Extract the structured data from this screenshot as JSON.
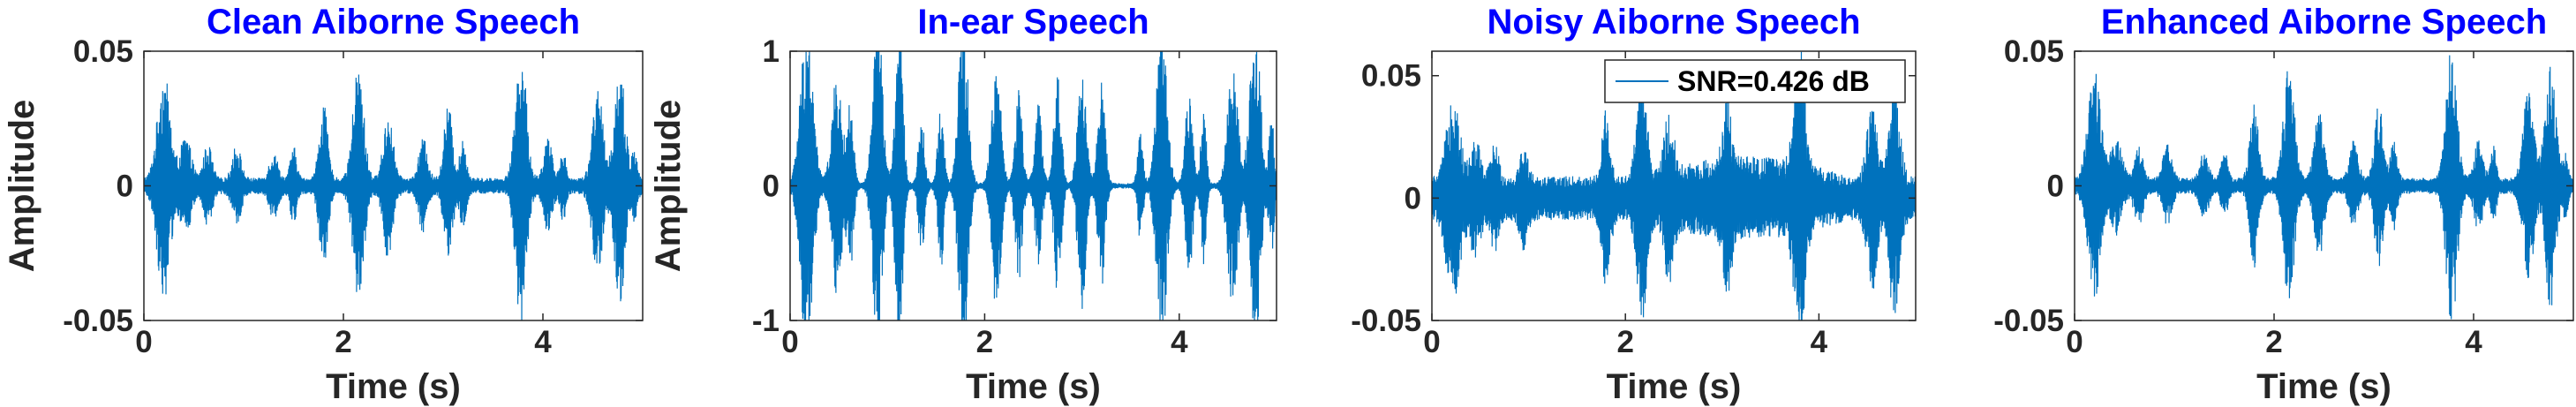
{
  "figure": {
    "background": "#ffffff",
    "signal_color": "#0072bd",
    "title_color": "#0000ff"
  },
  "chart_data": [
    {
      "type": "line",
      "title": "Clean Aiborne Speech",
      "xlabel": "Time (s)",
      "ylabel": "Amplitude",
      "xlim": [
        0,
        5
      ],
      "ylim": [
        -0.05,
        0.05
      ],
      "xticks": [
        0,
        2,
        4
      ],
      "xtick_labels": [
        "0",
        "2",
        "4"
      ],
      "yticks": [
        -0.05,
        0,
        0.05
      ],
      "ytick_labels": [
        "-0.05",
        "0",
        "0.05"
      ],
      "noise_floor": 0.003,
      "bursts": [
        {
          "t": 0.2,
          "amp": 0.04,
          "dur": 0.12
        },
        {
          "t": 0.42,
          "amp": 0.016,
          "dur": 0.1
        },
        {
          "t": 0.64,
          "amp": 0.013,
          "dur": 0.08
        },
        {
          "t": 0.93,
          "amp": 0.013,
          "dur": 0.08
        },
        {
          "t": 1.3,
          "amp": 0.01,
          "dur": 0.08
        },
        {
          "t": 1.5,
          "amp": 0.012,
          "dur": 0.06
        },
        {
          "t": 1.8,
          "amp": 0.028,
          "dur": 0.08
        },
        {
          "t": 2.15,
          "amp": 0.043,
          "dur": 0.1
        },
        {
          "t": 2.45,
          "amp": 0.025,
          "dur": 0.09
        },
        {
          "t": 2.8,
          "amp": 0.015,
          "dur": 0.08
        },
        {
          "t": 3.05,
          "amp": 0.028,
          "dur": 0.08
        },
        {
          "t": 3.2,
          "amp": 0.015,
          "dur": 0.06
        },
        {
          "t": 3.78,
          "amp": 0.05,
          "dur": 0.1
        },
        {
          "t": 4.05,
          "amp": 0.015,
          "dur": 0.08
        },
        {
          "t": 4.2,
          "amp": 0.012,
          "dur": 0.05
        },
        {
          "t": 4.55,
          "amp": 0.033,
          "dur": 0.1
        },
        {
          "t": 4.77,
          "amp": 0.043,
          "dur": 0.1
        },
        {
          "t": 4.92,
          "amp": 0.01,
          "dur": 0.05
        }
      ]
    },
    {
      "type": "line",
      "title": "In-ear Speech",
      "xlabel": "Time (s)",
      "ylabel": "Amplitude",
      "xlim": [
        0,
        5
      ],
      "ylim": [
        -1,
        1
      ],
      "xticks": [
        0,
        2,
        4
      ],
      "xtick_labels": [
        "0",
        "2",
        "4"
      ],
      "yticks": [
        -1,
        0,
        1
      ],
      "ytick_labels": [
        "-1",
        "0",
        "1"
      ],
      "noise_floor": 0.02,
      "bursts": [
        {
          "t": 0.17,
          "amp": 1.2,
          "dur": 0.12
        },
        {
          "t": 0.48,
          "amp": 0.8,
          "dur": 0.1
        },
        {
          "t": 0.62,
          "amp": 0.6,
          "dur": 0.06
        },
        {
          "t": 0.9,
          "amp": 1.3,
          "dur": 0.09
        },
        {
          "t": 1.12,
          "amp": 1.3,
          "dur": 0.07
        },
        {
          "t": 1.35,
          "amp": 0.5,
          "dur": 0.06
        },
        {
          "t": 1.55,
          "amp": 0.6,
          "dur": 0.06
        },
        {
          "t": 1.78,
          "amp": 1.3,
          "dur": 0.09
        },
        {
          "t": 2.12,
          "amp": 0.9,
          "dur": 0.09
        },
        {
          "t": 2.35,
          "amp": 0.7,
          "dur": 0.07
        },
        {
          "t": 2.55,
          "amp": 0.6,
          "dur": 0.07
        },
        {
          "t": 2.75,
          "amp": 0.8,
          "dur": 0.07
        },
        {
          "t": 3.0,
          "amp": 0.9,
          "dur": 0.08
        },
        {
          "t": 3.2,
          "amp": 0.75,
          "dur": 0.07
        },
        {
          "t": 3.6,
          "amp": 0.4,
          "dur": 0.05
        },
        {
          "t": 3.82,
          "amp": 1.2,
          "dur": 0.1
        },
        {
          "t": 4.1,
          "amp": 0.7,
          "dur": 0.07
        },
        {
          "t": 4.25,
          "amp": 0.6,
          "dur": 0.05
        },
        {
          "t": 4.55,
          "amp": 0.9,
          "dur": 0.1
        },
        {
          "t": 4.78,
          "amp": 1.2,
          "dur": 0.1
        },
        {
          "t": 4.95,
          "amp": 0.5,
          "dur": 0.05
        }
      ]
    },
    {
      "type": "line",
      "title": "Noisy Aiborne Speech",
      "xlabel": "Time (s)",
      "ylabel": "",
      "xlim": [
        0,
        5
      ],
      "ylim": [
        -0.05,
        0.06
      ],
      "xticks": [
        0,
        2,
        4
      ],
      "xtick_labels": [
        "0",
        "2",
        "4"
      ],
      "yticks": [
        -0.05,
        0,
        0.05
      ],
      "ytick_labels": [
        "-0.05",
        "0",
        "0.05"
      ],
      "noise_floor": 0.009,
      "noise_bump": {
        "start": 2.2,
        "end": 4.3,
        "extra": 0.008
      },
      "legend": {
        "label": "SNR=0.426 dB",
        "position": "top-right"
      },
      "bursts": [
        {
          "t": 0.22,
          "amp": 0.038,
          "dur": 0.12
        },
        {
          "t": 0.45,
          "amp": 0.016,
          "dur": 0.1
        },
        {
          "t": 0.65,
          "amp": 0.014,
          "dur": 0.08
        },
        {
          "t": 0.95,
          "amp": 0.013,
          "dur": 0.08
        },
        {
          "t": 1.8,
          "amp": 0.028,
          "dur": 0.08
        },
        {
          "t": 2.17,
          "amp": 0.042,
          "dur": 0.1
        },
        {
          "t": 2.45,
          "amp": 0.025,
          "dur": 0.09
        },
        {
          "t": 3.05,
          "amp": 0.027,
          "dur": 0.08
        },
        {
          "t": 3.8,
          "amp": 0.05,
          "dur": 0.1
        },
        {
          "t": 4.55,
          "amp": 0.03,
          "dur": 0.1
        },
        {
          "t": 4.78,
          "amp": 0.042,
          "dur": 0.1
        }
      ]
    },
    {
      "type": "line",
      "title": "Enhanced Aiborne Speech",
      "xlabel": "Time (s)",
      "ylabel": "",
      "xlim": [
        0,
        5
      ],
      "ylim": [
        -0.05,
        0.05
      ],
      "xticks": [
        0,
        2,
        4
      ],
      "xtick_labels": [
        "0",
        "2",
        "4"
      ],
      "yticks": [
        -0.05,
        0,
        0.05
      ],
      "ytick_labels": [
        "-0.05",
        "0",
        "0.05"
      ],
      "noise_floor": 0.003,
      "bursts": [
        {
          "t": 0.2,
          "amp": 0.04,
          "dur": 0.12
        },
        {
          "t": 0.42,
          "amp": 0.016,
          "dur": 0.1
        },
        {
          "t": 0.64,
          "amp": 0.013,
          "dur": 0.08
        },
        {
          "t": 0.93,
          "amp": 0.013,
          "dur": 0.08
        },
        {
          "t": 1.3,
          "amp": 0.01,
          "dur": 0.08
        },
        {
          "t": 1.5,
          "amp": 0.011,
          "dur": 0.06
        },
        {
          "t": 1.8,
          "amp": 0.028,
          "dur": 0.08
        },
        {
          "t": 2.15,
          "amp": 0.043,
          "dur": 0.1
        },
        {
          "t": 2.45,
          "amp": 0.025,
          "dur": 0.09
        },
        {
          "t": 2.8,
          "amp": 0.015,
          "dur": 0.08
        },
        {
          "t": 3.05,
          "amp": 0.028,
          "dur": 0.08
        },
        {
          "t": 3.2,
          "amp": 0.014,
          "dur": 0.06
        },
        {
          "t": 3.78,
          "amp": 0.05,
          "dur": 0.1
        },
        {
          "t": 4.05,
          "amp": 0.015,
          "dur": 0.08
        },
        {
          "t": 4.2,
          "amp": 0.012,
          "dur": 0.05
        },
        {
          "t": 4.55,
          "amp": 0.033,
          "dur": 0.1
        },
        {
          "t": 4.77,
          "amp": 0.043,
          "dur": 0.1
        },
        {
          "t": 4.92,
          "amp": 0.01,
          "dur": 0.05
        }
      ]
    }
  ]
}
